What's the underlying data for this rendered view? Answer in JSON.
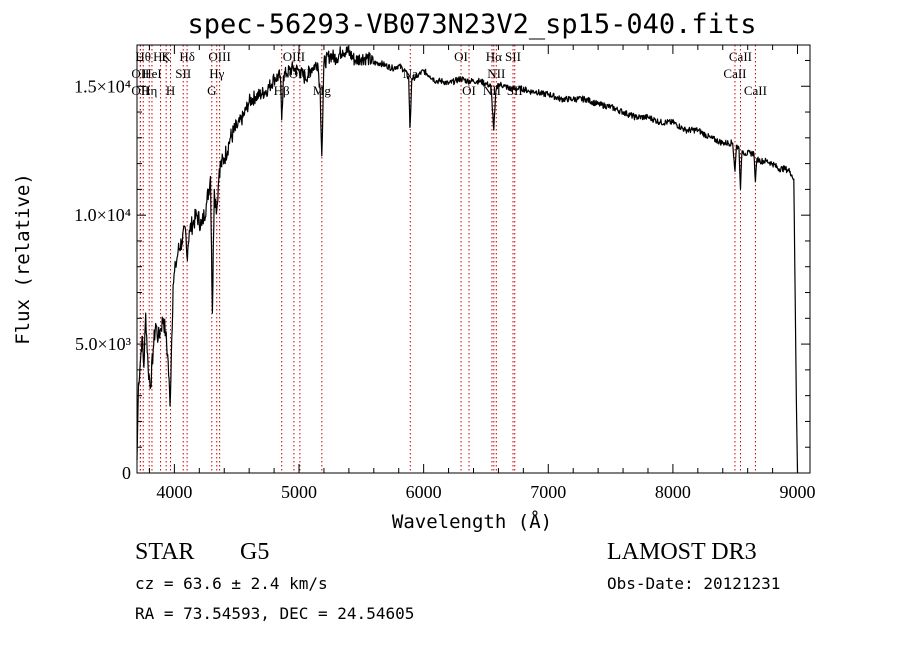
{
  "chart_data": {
    "type": "line",
    "title": "spec-56293-VB073N23V2_sp15-040.fits",
    "xlabel": "Wavelength (Å)",
    "ylabel": "Flux (relative)",
    "xlim": [
      3700,
      9100
    ],
    "ylim": [
      0,
      16600
    ],
    "grid": false,
    "x_ticks": [
      {
        "value": 4000,
        "label": "4000"
      },
      {
        "value": 5000,
        "label": "5000"
      },
      {
        "value": 6000,
        "label": "6000"
      },
      {
        "value": 7000,
        "label": "7000"
      },
      {
        "value": 8000,
        "label": "8000"
      },
      {
        "value": 9000,
        "label": "9000"
      }
    ],
    "y_ticks": [
      {
        "value": 0,
        "label": "0"
      },
      {
        "value": 5000,
        "label": "5.0×10³"
      },
      {
        "value": 10000,
        "label": "1.0×10⁴"
      },
      {
        "value": 15000,
        "label": "1.5×10⁴"
      }
    ],
    "series": [
      {
        "name": "spectrum",
        "color": "#000000",
        "x": [
          3700,
          3712,
          3725,
          3740,
          3755,
          3770,
          3790,
          3810,
          3830,
          3850,
          3870,
          3890,
          3910,
          3930,
          3950,
          3965,
          3975,
          3990,
          4010,
          4030,
          4060,
          4090,
          4100,
          4120,
          4150,
          4180,
          4220,
          4260,
          4290,
          4305,
          4320,
          4340,
          4360,
          4400,
          4450,
          4500,
          4550,
          4600,
          4650,
          4700,
          4750,
          4800,
          4850,
          4861,
          4875,
          4900,
          4950,
          5000,
          5050,
          5100,
          5150,
          5170,
          5183,
          5200,
          5250,
          5300,
          5350,
          5400,
          5450,
          5500,
          5550,
          5600,
          5650,
          5700,
          5750,
          5800,
          5850,
          5880,
          5890,
          5896,
          5905,
          5950,
          6000,
          6050,
          6100,
          6150,
          6200,
          6250,
          6300,
          6350,
          6400,
          6450,
          6500,
          6540,
          6563,
          6580,
          6600,
          6650,
          6700,
          6750,
          6800,
          6850,
          6900,
          6950,
          7000,
          7100,
          7200,
          7300,
          7400,
          7500,
          7600,
          7700,
          7800,
          7900,
          8000,
          8100,
          8200,
          8300,
          8400,
          8480,
          8498,
          8510,
          8530,
          8542,
          8555,
          8580,
          8620,
          8650,
          8662,
          8675,
          8700,
          8750,
          8800,
          8850,
          8900,
          8940,
          8970,
          8990,
          9000
        ],
        "y": [
          500,
          3500,
          4200,
          5300,
          4100,
          6200,
          4000,
          3400,
          4800,
          5800,
          5200,
          5600,
          6000,
          5400,
          4300,
          2600,
          4500,
          7300,
          8000,
          8600,
          9000,
          9400,
          8400,
          9400,
          9700,
          10000,
          9600,
          10500,
          11500,
          6200,
          11000,
          10200,
          11800,
          12200,
          13000,
          13400,
          13800,
          14400,
          14600,
          14700,
          14900,
          15300,
          15400,
          13700,
          15400,
          15500,
          15700,
          15600,
          15300,
          15700,
          15900,
          14800,
          12300,
          15900,
          16200,
          16100,
          16400,
          16300,
          16000,
          16100,
          16100,
          15900,
          15900,
          15800,
          15700,
          15800,
          15600,
          15300,
          13400,
          14000,
          15300,
          15400,
          15600,
          15400,
          15200,
          15200,
          15100,
          15200,
          15300,
          15200,
          15200,
          15200,
          15100,
          15000,
          13300,
          14800,
          15100,
          15000,
          14900,
          14900,
          14900,
          14800,
          14800,
          14700,
          14700,
          14500,
          14500,
          14500,
          14300,
          14200,
          14000,
          13800,
          13800,
          13600,
          13600,
          13300,
          13300,
          13000,
          12800,
          12800,
          11700,
          12700,
          12600,
          11000,
          12500,
          12400,
          12400,
          12400,
          11300,
          12200,
          12100,
          12100,
          12000,
          11800,
          11800,
          11700,
          11400,
          3000,
          0
        ]
      }
    ],
    "line_markers": [
      {
        "wavelength": 3750,
        "label": "Hθ",
        "row": 1
      },
      {
        "wavelength": 3727,
        "label": "OII",
        "row": 2
      },
      {
        "wavelength": 3727,
        "label": "OII",
        "row": 3
      },
      {
        "wavelength": 3798,
        "label": "Hη",
        "row": 3
      },
      {
        "wavelength": 3820,
        "label": "HeI",
        "row": 2
      },
      {
        "wavelength": 3889,
        "label": "Hζ",
        "row": 1
      },
      {
        "wavelength": 3934,
        "label": "K",
        "row": 1
      },
      {
        "wavelength": 3969,
        "label": "H",
        "row": 3
      },
      {
        "wavelength": 4071,
        "label": "SII",
        "row": 2
      },
      {
        "wavelength": 4102,
        "label": "Hδ",
        "row": 1
      },
      {
        "wavelength": 4300,
        "label": "G",
        "row": 3
      },
      {
        "wavelength": 4340,
        "label": "Hγ",
        "row": 2
      },
      {
        "wavelength": 4363,
        "label": "OIII",
        "row": 1
      },
      {
        "wavelength": 4861,
        "label": "Hβ",
        "row": 3
      },
      {
        "wavelength": 4959,
        "label": "OIII",
        "row": 1
      },
      {
        "wavelength": 5007,
        "label": "OIII",
        "row": 2
      },
      {
        "wavelength": 5183,
        "label": "Mg",
        "row": 3
      },
      {
        "wavelength": 5893,
        "label": "Na",
        "row": 2
      },
      {
        "wavelength": 6300,
        "label": "OI",
        "row": 1
      },
      {
        "wavelength": 6364,
        "label": "OI",
        "row": 3
      },
      {
        "wavelength": 6548,
        "label": "NII",
        "row": 3
      },
      {
        "wavelength": 6563,
        "label": "Hα",
        "row": 1
      },
      {
        "wavelength": 6583,
        "label": "NII",
        "row": 2
      },
      {
        "wavelength": 6717,
        "label": "SII",
        "row": 1
      },
      {
        "wavelength": 6731,
        "label": "SII",
        "row": 3
      },
      {
        "wavelength": 8498,
        "label": "CaII",
        "row": 2
      },
      {
        "wavelength": 8542,
        "label": "CaII",
        "row": 1
      },
      {
        "wavelength": 8662,
        "label": "CaII",
        "row": 3
      }
    ]
  },
  "info": {
    "object_class": "STAR",
    "subclass": "G5",
    "redshift_line": "cz = 63.6 ± 2.4 km/s",
    "coords_line": "RA =  73.54593, DEC =  24.54605",
    "survey": "LAMOST DR3",
    "obs_date_line": "Obs-Date: 20121231"
  },
  "colors": {
    "line": "#000000",
    "marker": "#cc0000"
  }
}
